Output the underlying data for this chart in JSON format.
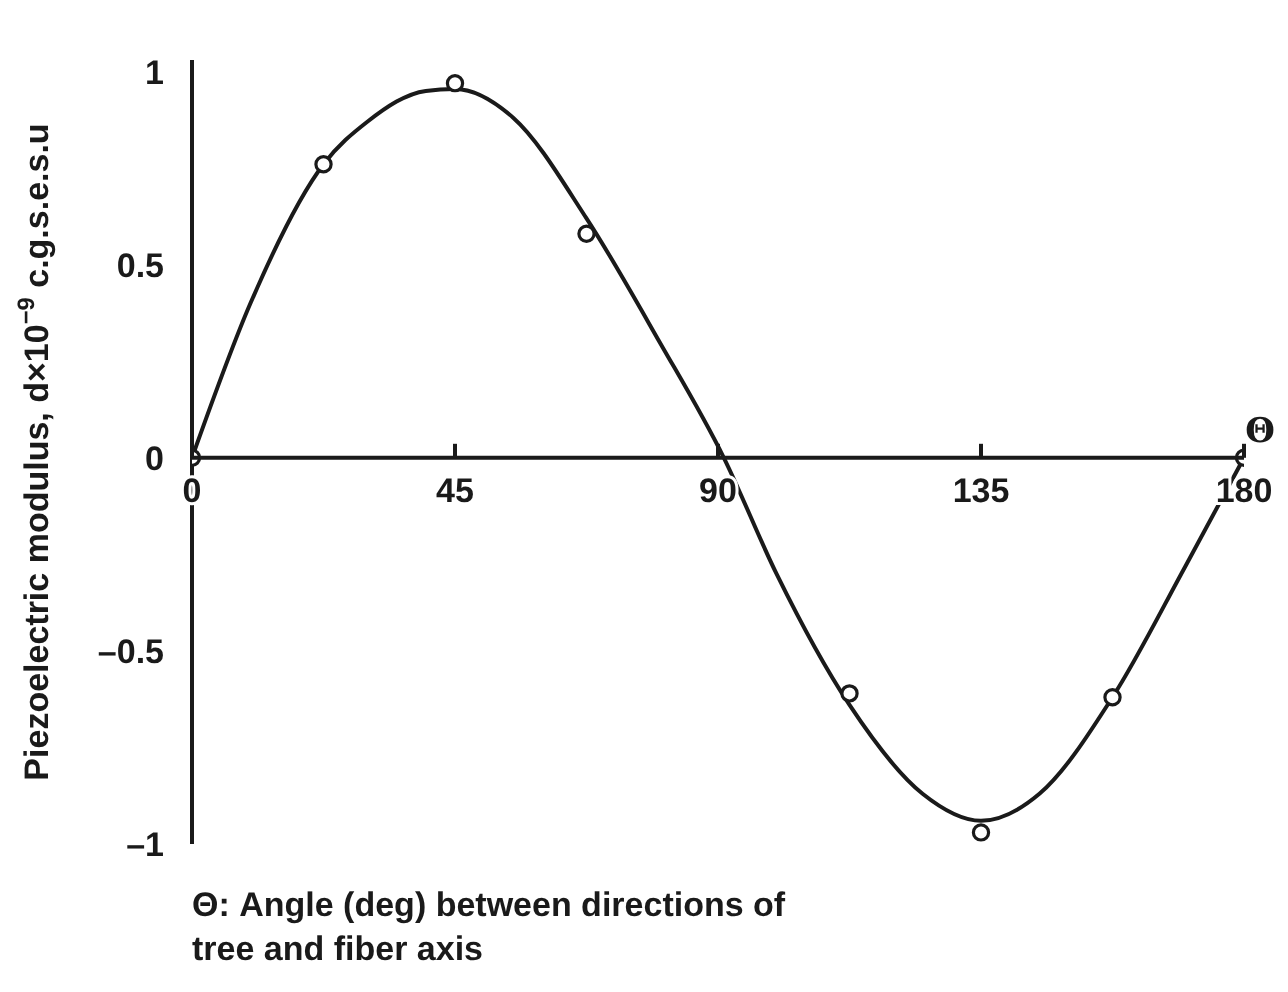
{
  "chart_data": {
    "type": "line",
    "xlabel": "Θ: Angle (deg) between directions of tree and fiber axis",
    "ylabel": "Piezoelectric modulus, d×10$^{−9}$ c.g.s.e.s.u",
    "annotations": [
      "Θ"
    ],
    "xlim": [
      0,
      180
    ],
    "xticks": [
      0,
      45,
      90,
      135,
      180
    ],
    "ylim": [
      -1,
      1.03
    ],
    "yticks": [
      {
        "value": -1,
        "label": "–1"
      },
      {
        "value": -0.5,
        "label": "–0.5"
      },
      0,
      0.5,
      1
    ],
    "series": [
      {
        "type": "scatter",
        "color": "#1a1a1a",
        "marker": "circle",
        "x": [
          0,
          22.5,
          45,
          67.5,
          112.5,
          135,
          157.5,
          180
        ],
        "values": [
          0,
          0.76,
          0.97,
          0.58,
          -0.61,
          -0.97,
          -0.62,
          0
        ]
      },
      {
        "color": "#1a1a1a",
        "marker": "none",
        "x": [
          0,
          10,
          22.5,
          30,
          40,
          45,
          55,
          67.5,
          80,
          91,
          100,
          112.5,
          125,
          135,
          145,
          157.5,
          170,
          180
        ],
        "values": [
          0,
          0.4,
          0.76,
          0.87,
          0.95,
          0.955,
          0.88,
          0.62,
          0.3,
          0,
          -0.3,
          -0.64,
          -0.87,
          -0.94,
          -0.87,
          -0.62,
          -0.28,
          0
        ]
      }
    ]
  }
}
